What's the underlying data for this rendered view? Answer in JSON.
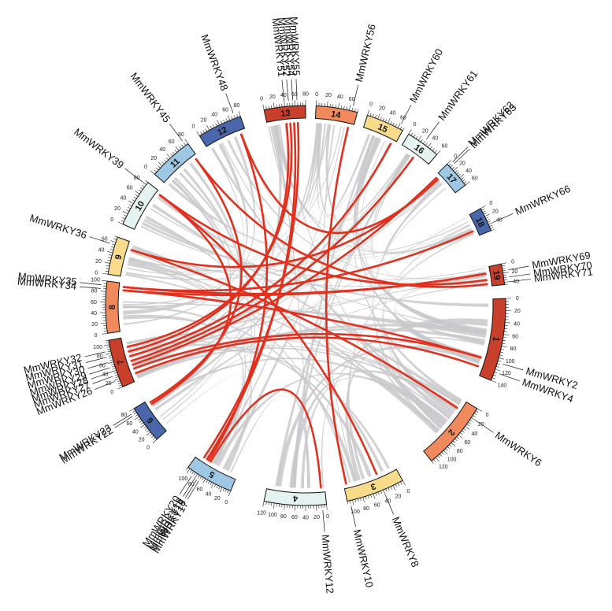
{
  "chromosomes": [
    {
      "id": "1",
      "length": 140,
      "color": "#c8402c"
    },
    {
      "id": "2",
      "length": 130,
      "color": "#f08a5d"
    },
    {
      "id": "3",
      "length": 110,
      "color": "#f8dc8c"
    },
    {
      "id": "4",
      "length": 120,
      "color": "#e4f2f0"
    },
    {
      "id": "5",
      "length": 105,
      "color": "#9dc7e3"
    },
    {
      "id": "6",
      "length": 80,
      "color": "#4a67ac"
    },
    {
      "id": "7",
      "length": 110,
      "color": "#c8402c"
    },
    {
      "id": "8",
      "length": 100,
      "color": "#f08a5d"
    },
    {
      "id": "9",
      "length": 70,
      "color": "#f8dc8c"
    },
    {
      "id": "10",
      "length": 85,
      "color": "#e4f2f0"
    },
    {
      "id": "11",
      "length": 80,
      "color": "#9dc7e3"
    },
    {
      "id": "12",
      "length": 80,
      "color": "#4a67ac"
    },
    {
      "id": "13",
      "length": 80,
      "color": "#c8402c"
    },
    {
      "id": "14",
      "length": 75,
      "color": "#f08a5d"
    },
    {
      "id": "15",
      "length": 70,
      "color": "#f8dc8c"
    },
    {
      "id": "16",
      "length": 60,
      "color": "#e4f2f0"
    },
    {
      "id": "17",
      "length": 60,
      "color": "#9dc7e3"
    },
    {
      "id": "18",
      "length": 55,
      "color": "#4a67ac"
    },
    {
      "id": "19",
      "length": 45,
      "color": "#c8402c"
    }
  ],
  "genes": [
    {
      "name": "MmWRKY2",
      "chr": "1",
      "pos": 108
    },
    {
      "name": "MmWRKY4",
      "chr": "1",
      "pos": 125
    },
    {
      "name": "MmWRKY6",
      "chr": "2",
      "pos": 20
    },
    {
      "name": "MmWRKY8",
      "chr": "3",
      "pos": 40
    },
    {
      "name": "MmWRKY10",
      "chr": "3",
      "pos": 105
    },
    {
      "name": "MmWRKY12",
      "chr": "4",
      "pos": 8
    },
    {
      "name": "MmWRKY17",
      "chr": "5",
      "pos": 70
    },
    {
      "name": "MmWRKY18",
      "chr": "5",
      "pos": 75
    },
    {
      "name": "MmWRKY19",
      "chr": "5",
      "pos": 80
    },
    {
      "name": "MmWRKY20",
      "chr": "5",
      "pos": 88
    },
    {
      "name": "MmWRKY22",
      "chr": "6",
      "pos": 68
    },
    {
      "name": "MmWRKY23",
      "chr": "6",
      "pos": 73
    },
    {
      "name": "MmWRKY26",
      "chr": "7",
      "pos": 18
    },
    {
      "name": "MmWRKY27",
      "chr": "7",
      "pos": 30
    },
    {
      "name": "MmWRKY28",
      "chr": "7",
      "pos": 40
    },
    {
      "name": "MmWRKY29",
      "chr": "7",
      "pos": 50
    },
    {
      "name": "MmWRKY30",
      "chr": "7",
      "pos": 62
    },
    {
      "name": "MmWRKY31",
      "chr": "7",
      "pos": 74
    },
    {
      "name": "MmWRKY32",
      "chr": "7",
      "pos": 86
    },
    {
      "name": "MmWRKY34",
      "chr": "8",
      "pos": 85
    },
    {
      "name": "MmWRKY35",
      "chr": "8",
      "pos": 92
    },
    {
      "name": "MmWRKY36",
      "chr": "9",
      "pos": 55
    },
    {
      "name": "MmWRKY39",
      "chr": "10",
      "pos": 80
    },
    {
      "name": "MmWRKY45",
      "chr": "11",
      "pos": 75
    },
    {
      "name": "MmWRKY48",
      "chr": "12",
      "pos": 70
    },
    {
      "name": "MmWRKY51",
      "chr": "13",
      "pos": 40
    },
    {
      "name": "MmWRKY52",
      "chr": "13",
      "pos": 48
    },
    {
      "name": "MmWRKY54",
      "chr": "13",
      "pos": 56
    },
    {
      "name": "MmWRKY55",
      "chr": "13",
      "pos": 64
    },
    {
      "name": "MmWRKY56",
      "chr": "14",
      "pos": 65
    },
    {
      "name": "MmWRKY60",
      "chr": "15",
      "pos": 62
    },
    {
      "name": "MmWRKY61",
      "chr": "16",
      "pos": 30
    },
    {
      "name": "MmWRKY62",
      "chr": "17",
      "pos": 5
    },
    {
      "name": "MmWRKY63",
      "chr": "17",
      "pos": 10
    },
    {
      "name": "MmWRKY66",
      "chr": "18",
      "pos": 40
    },
    {
      "name": "MmWRKY69",
      "chr": "19",
      "pos": 15
    },
    {
      "name": "MmWRKY70",
      "chr": "19",
      "pos": 30
    },
    {
      "name": "MmWRKY71",
      "chr": "19",
      "pos": 40
    }
  ],
  "colors": {
    "background_link": "#c9c8ca",
    "highlight_link": "#e2301e"
  }
}
